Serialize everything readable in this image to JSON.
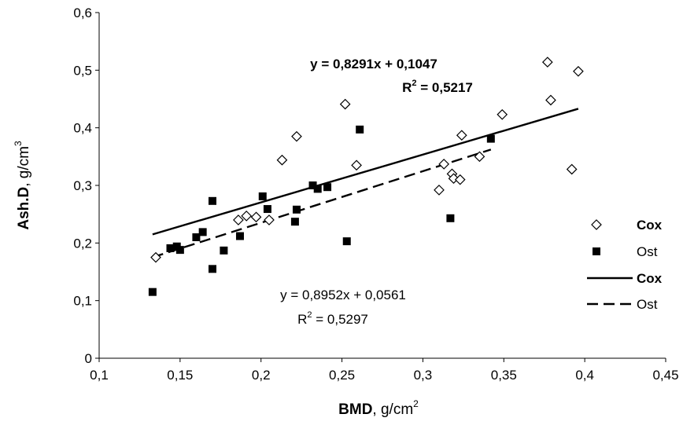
{
  "chart_data": {
    "type": "scatter",
    "xlabel": {
      "main": "BMD",
      "unit_prefix": ", g/cm",
      "unit_exp": "2"
    },
    "ylabel": {
      "main": "Ash.D",
      "unit_prefix": ", g/cm",
      "unit_exp": "3"
    },
    "xlim": [
      0.1,
      0.45
    ],
    "ylim": [
      0,
      0.6
    ],
    "x_ticks": [
      "0,1",
      "0,15",
      "0,2",
      "0,25",
      "0,3",
      "0,35",
      "0,4",
      "0,45"
    ],
    "y_ticks": [
      "0",
      "0,1",
      "0,2",
      "0,3",
      "0,4",
      "0,5",
      "0,6"
    ],
    "grid": false,
    "legend_position": "right",
    "series": [
      {
        "name": "Cox",
        "marker": "diamond-open",
        "points": [
          [
            0.135,
            0.175
          ],
          [
            0.186,
            0.24
          ],
          [
            0.191,
            0.247
          ],
          [
            0.197,
            0.245
          ],
          [
            0.205,
            0.24
          ],
          [
            0.213,
            0.344
          ],
          [
            0.222,
            0.385
          ],
          [
            0.252,
            0.441
          ],
          [
            0.259,
            0.335
          ],
          [
            0.31,
            0.292
          ],
          [
            0.313,
            0.337
          ],
          [
            0.318,
            0.32
          ],
          [
            0.319,
            0.312
          ],
          [
            0.323,
            0.31
          ],
          [
            0.324,
            0.387
          ],
          [
            0.335,
            0.35
          ],
          [
            0.349,
            0.423
          ],
          [
            0.377,
            0.514
          ],
          [
            0.379,
            0.448
          ],
          [
            0.392,
            0.328
          ],
          [
            0.396,
            0.498
          ]
        ]
      },
      {
        "name": "Ost",
        "marker": "square-filled",
        "points": [
          [
            0.133,
            0.115
          ],
          [
            0.144,
            0.191
          ],
          [
            0.148,
            0.194
          ],
          [
            0.15,
            0.188
          ],
          [
            0.16,
            0.21
          ],
          [
            0.164,
            0.219
          ],
          [
            0.17,
            0.273
          ],
          [
            0.17,
            0.155
          ],
          [
            0.177,
            0.187
          ],
          [
            0.187,
            0.212
          ],
          [
            0.201,
            0.281
          ],
          [
            0.204,
            0.259
          ],
          [
            0.221,
            0.237
          ],
          [
            0.222,
            0.258
          ],
          [
            0.232,
            0.3
          ],
          [
            0.235,
            0.294
          ],
          [
            0.241,
            0.297
          ],
          [
            0.253,
            0.203
          ],
          [
            0.261,
            0.397
          ],
          [
            0.317,
            0.243
          ],
          [
            0.342,
            0.381
          ]
        ]
      }
    ],
    "trendlines": [
      {
        "name": "Cox",
        "style": "solid",
        "slope": 0.8291,
        "intercept": 0.1047,
        "x_range": [
          0.133,
          0.396
        ]
      },
      {
        "name": "Ost",
        "style": "dashed",
        "slope": 0.8952,
        "intercept": 0.0561,
        "x_range": [
          0.133,
          0.342
        ]
      }
    ],
    "annotations": {
      "cox_equation": "y = 0,8291x + 0,1047",
      "cox_r2_prefix": "R",
      "cox_r2_exp": "2",
      "cox_r2_value": " = 0,5217",
      "ost_equation": "y = 0,8952x + 0,0561",
      "ost_r2_prefix": "R",
      "ost_r2_exp": "2",
      "ost_r2_value": " = 0,5297"
    },
    "legend": [
      {
        "label": "Cox",
        "kind": "diamond-open",
        "bold": true
      },
      {
        "label": "Ost",
        "kind": "square-filled",
        "bold": false
      },
      {
        "label": "Cox",
        "kind": "line-solid",
        "bold": true
      },
      {
        "label": "Ost",
        "kind": "line-dashed",
        "bold": false
      }
    ]
  }
}
